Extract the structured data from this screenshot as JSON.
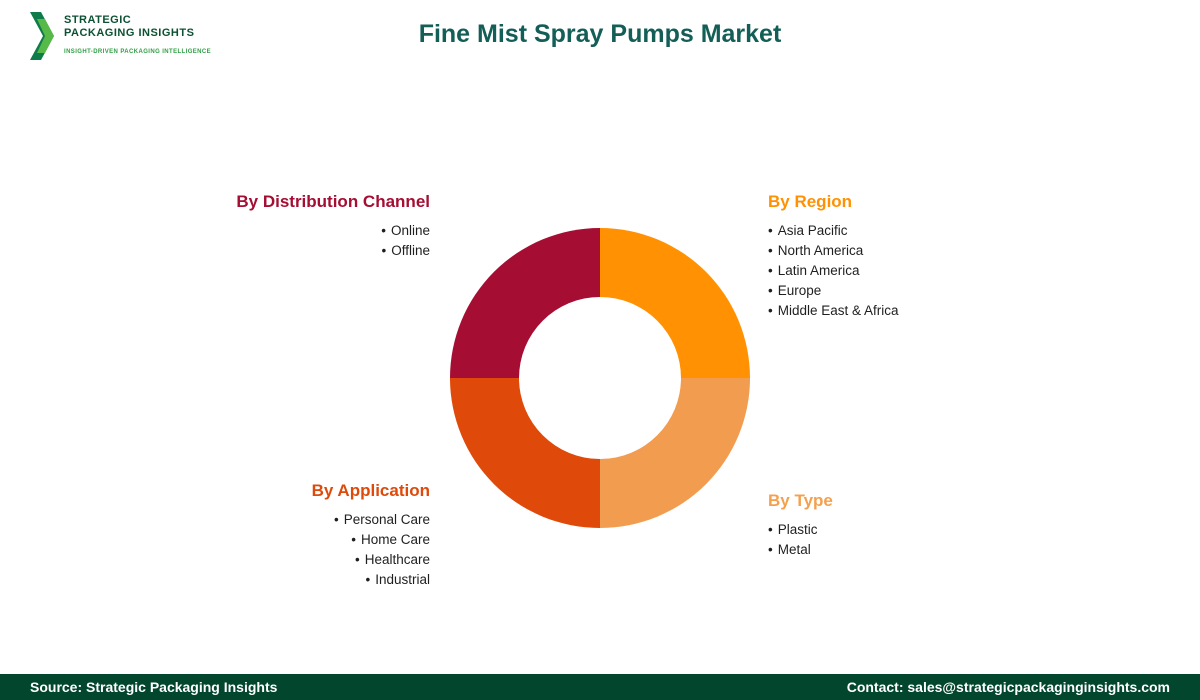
{
  "header": {
    "title": "Fine Mist Spray Pumps Market",
    "title_color": "#135E56",
    "logo": {
      "line1": "STRATEGIC",
      "line2": "PACKAGING INSIGHTS",
      "tagline": "INSIGHT-DRIVEN PACKAGING INTELLIGENCE",
      "icon": "double-chevron-ribbon-icon",
      "text_color": "#0C5132",
      "tagline_color": "#2F9E44"
    }
  },
  "chart_data": {
    "type": "pie",
    "donut": true,
    "title": "Fine Mist Spray Pumps Market",
    "start_angle_deg": 0,
    "legend_position": "around",
    "segments": [
      {
        "label": "By Region",
        "value": 25,
        "color": "#FF9102"
      },
      {
        "label": "By Type",
        "value": 25,
        "color": "#F29C4F"
      },
      {
        "label": "By Application",
        "value": 25,
        "color": "#DF4909"
      },
      {
        "label": "By Distribution Channel",
        "value": 25,
        "color": "#A50D33"
      }
    ]
  },
  "sections": {
    "distribution": {
      "title": "By Distribution Channel",
      "color": "#A50D33",
      "items": [
        "Online",
        "Offline"
      ]
    },
    "region": {
      "title": "By Region",
      "color": "#FF9102",
      "items": [
        "Asia Pacific",
        "North America",
        "Latin America",
        "Europe",
        "Middle East & Africa"
      ]
    },
    "application": {
      "title": "By Application",
      "color": "#DF4909",
      "items": [
        "Personal Care",
        "Home Care",
        "Healthcare",
        "Industrial"
      ]
    },
    "type": {
      "title": "By Type",
      "color": "#F5A04C",
      "items": [
        "Plastic",
        "Metal"
      ]
    }
  },
  "footer": {
    "source": "Source: Strategic Packaging Insights",
    "contact": "Contact: sales@strategicpackaginginsights.com",
    "background": "#03462E"
  }
}
